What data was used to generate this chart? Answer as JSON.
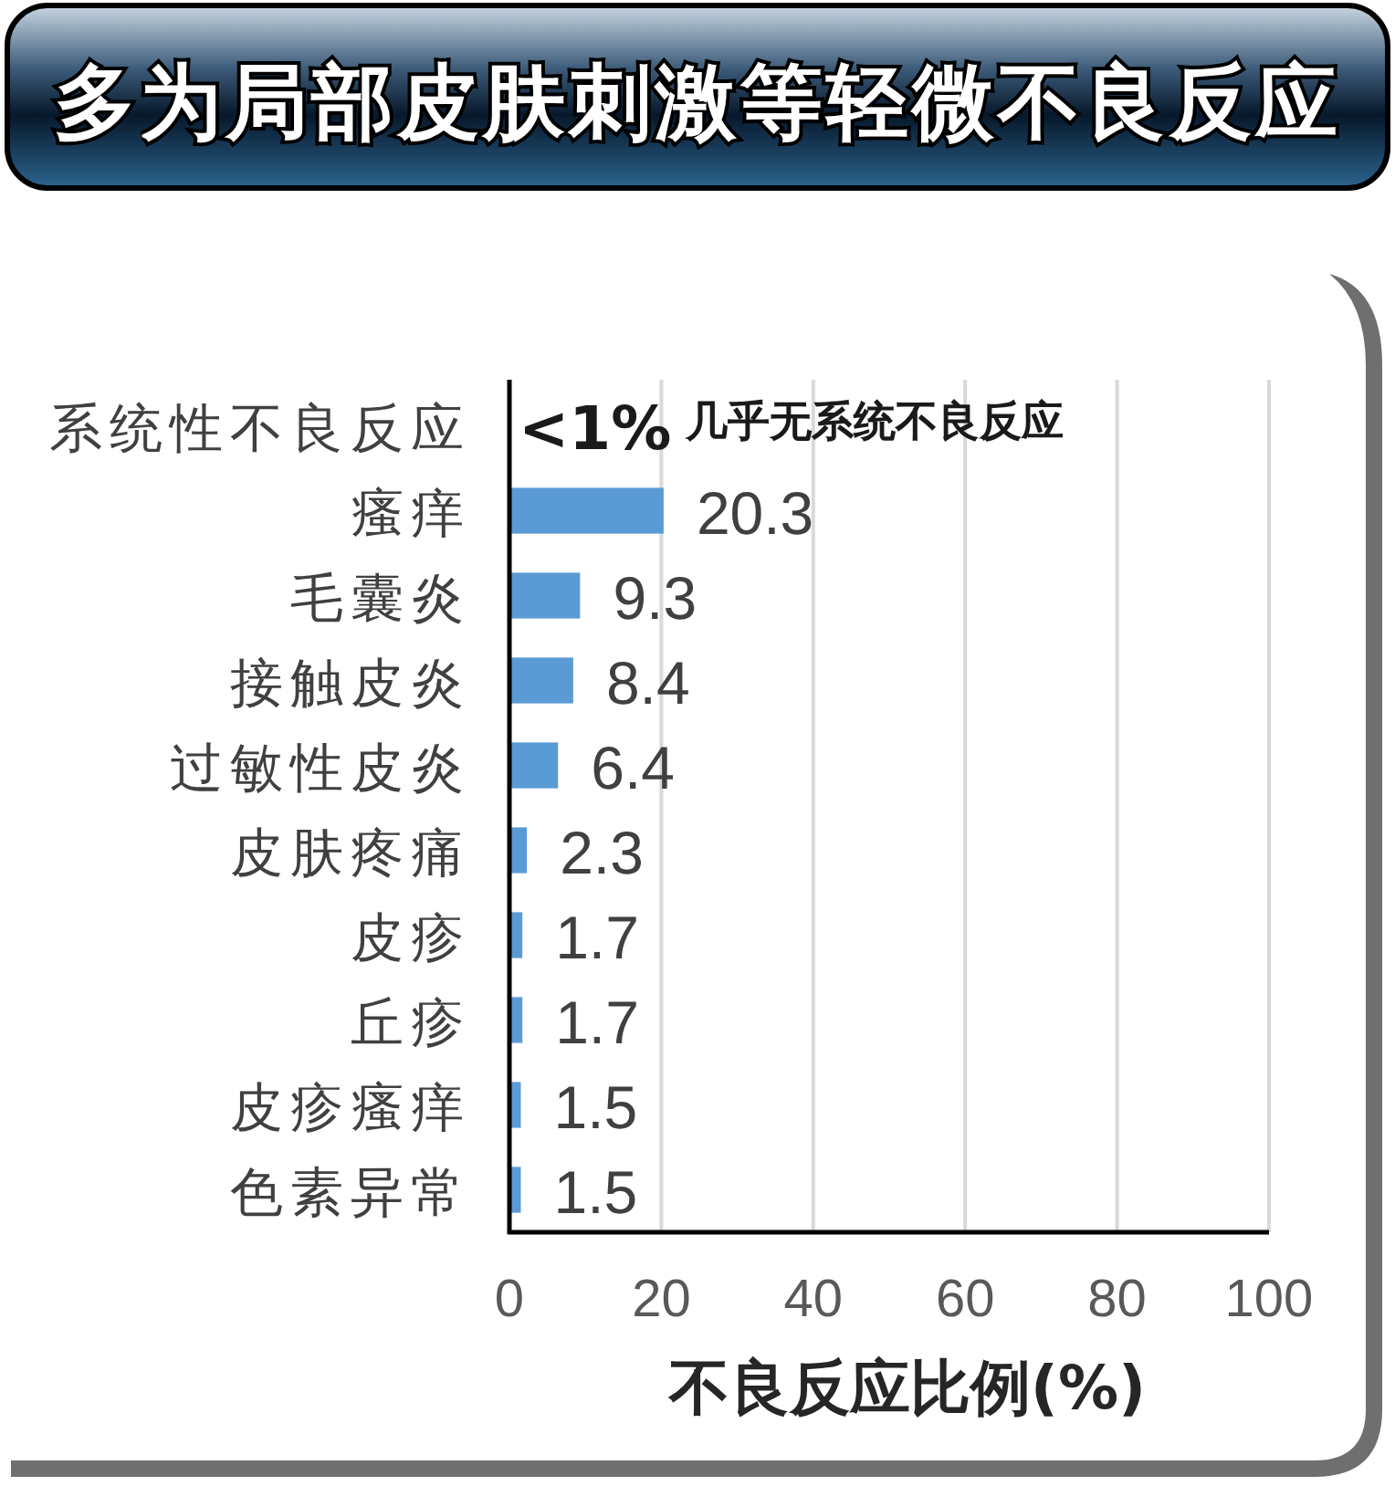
{
  "chart_data": {
    "type": "bar",
    "orientation": "horizontal",
    "title": "多为局部皮肤刺激等轻微不良反应",
    "xlabel": "不良反应比例(%)",
    "categories": [
      "系统性不良反应",
      "瘙痒",
      "毛囊炎",
      "接触皮炎",
      "过敏性皮炎",
      "皮肤疼痛",
      "皮疹",
      "丘疹",
      "皮疹瘙痒",
      "色素异常"
    ],
    "values": [
      null,
      20.3,
      9.3,
      8.4,
      6.4,
      2.3,
      1.7,
      1.7,
      1.5,
      1.5
    ],
    "value_labels": [
      "<1%",
      "20.3",
      "9.3",
      "8.4",
      "6.4",
      "2.3",
      "1.7",
      "1.7",
      "1.5",
      "1.5"
    ],
    "color": "#5b9bd5",
    "xlim": [
      0,
      100
    ],
    "xticks": [
      0,
      20,
      40,
      60,
      80,
      100
    ],
    "grid": "x",
    "annotations": [
      "几乎无系统不良反应"
    ]
  }
}
